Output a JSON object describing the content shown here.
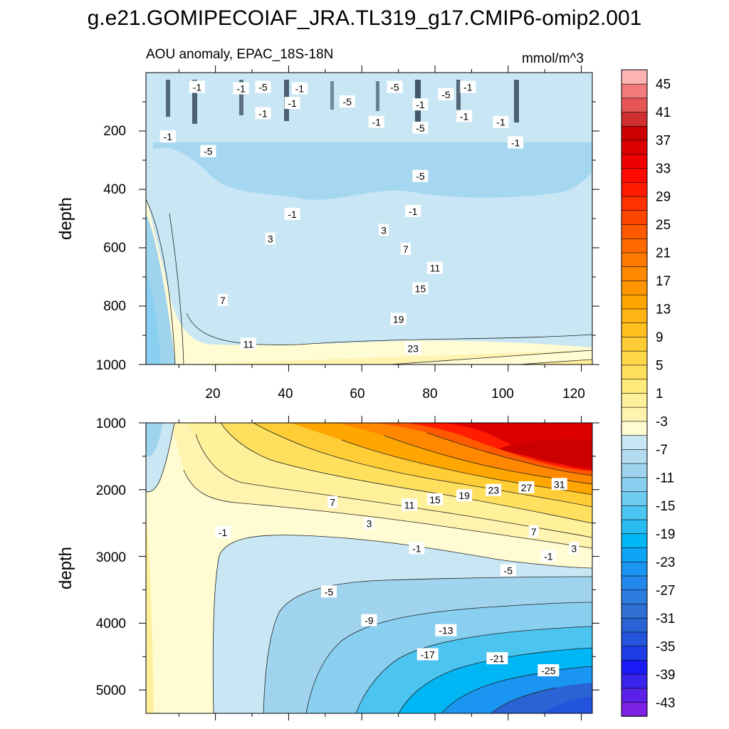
{
  "figure": {
    "title": "g.e21.GOMIPECOIAF_JRA.TL319_g17.CMIP6-omip2.001",
    "left_subtitle": "AOU anomaly, EPAC_18S-18N",
    "right_subtitle": "mmol/m^3"
  },
  "chart_data": [
    {
      "type": "contour",
      "panel": "upper",
      "ylabel": "depth",
      "xlim": [
        1,
        123
      ],
      "ylim": [
        1000,
        0
      ],
      "y_tick_labels": [
        "200",
        "400",
        "600",
        "800",
        "1000"
      ],
      "x_tick_labels": [
        "20",
        "40",
        "60",
        "80",
        "100",
        "120"
      ],
      "contour_labels": [
        {
          "text": "-1",
          "x": 15,
          "y": 50
        },
        {
          "text": "-1",
          "x": 27,
          "y": 55
        },
        {
          "text": "-5",
          "x": 33,
          "y": 50
        },
        {
          "text": "-1",
          "x": 43,
          "y": 55
        },
        {
          "text": "-5",
          "x": 69,
          "y": 50
        },
        {
          "text": "-1",
          "x": 89,
          "y": 50
        },
        {
          "text": "-5",
          "x": 83,
          "y": 75
        },
        {
          "text": "-5",
          "x": 56,
          "y": 100
        },
        {
          "text": "-1",
          "x": 41,
          "y": 105
        },
        {
          "text": "-1",
          "x": 33,
          "y": 140
        },
        {
          "text": "-1",
          "x": 76,
          "y": 110
        },
        {
          "text": "-1",
          "x": 64,
          "y": 170
        },
        {
          "text": "-5",
          "x": 76,
          "y": 190
        },
        {
          "text": "-1",
          "x": 88,
          "y": 150
        },
        {
          "text": "-1",
          "x": 98,
          "y": 170
        },
        {
          "text": "-1",
          "x": 102,
          "y": 240
        },
        {
          "text": "-1",
          "x": 7,
          "y": 220
        },
        {
          "text": "-5",
          "x": 18,
          "y": 270
        },
        {
          "text": "-5",
          "x": 76,
          "y": 355
        },
        {
          "text": "-1",
          "x": 41,
          "y": 485
        },
        {
          "text": "-1",
          "x": 74,
          "y": 475
        },
        {
          "text": "3",
          "x": 66,
          "y": 540
        },
        {
          "text": "3",
          "x": 35,
          "y": 570
        },
        {
          "text": "7",
          "x": 72,
          "y": 605
        },
        {
          "text": "11",
          "x": 80,
          "y": 670
        },
        {
          "text": "15",
          "x": 76,
          "y": 740
        },
        {
          "text": "7",
          "x": 22,
          "y": 780
        },
        {
          "text": "19",
          "x": 70,
          "y": 845
        },
        {
          "text": "11",
          "x": 29,
          "y": 930
        },
        {
          "text": "23",
          "x": 74,
          "y": 945
        }
      ]
    },
    {
      "type": "contour",
      "panel": "lower",
      "ylabel": "depth",
      "xlim": [
        1,
        123
      ],
      "ylim": [
        5350,
        1000
      ],
      "y_tick_labels": [
        "1000",
        "2000",
        "3000",
        "4000",
        "5000"
      ],
      "contour_labels": [
        {
          "text": "7",
          "x": 52,
          "y": 2190
        },
        {
          "text": "11",
          "x": 73,
          "y": 2230
        },
        {
          "text": "15",
          "x": 80,
          "y": 2150
        },
        {
          "text": "19",
          "x": 88,
          "y": 2090
        },
        {
          "text": "23",
          "x": 96,
          "y": 2010
        },
        {
          "text": "27",
          "x": 105,
          "y": 1970
        },
        {
          "text": "31",
          "x": 114,
          "y": 1920
        },
        {
          "text": "3",
          "x": 62,
          "y": 2510
        },
        {
          "text": "7",
          "x": 107,
          "y": 2630
        },
        {
          "text": "-1",
          "x": 22,
          "y": 2640
        },
        {
          "text": "-1",
          "x": 75,
          "y": 2880
        },
        {
          "text": "3",
          "x": 118,
          "y": 2880
        },
        {
          "text": "-1",
          "x": 111,
          "y": 3000
        },
        {
          "text": "-5",
          "x": 100,
          "y": 3210
        },
        {
          "text": "-5",
          "x": 51,
          "y": 3530
        },
        {
          "text": "-9",
          "x": 62,
          "y": 3960
        },
        {
          "text": "-13",
          "x": 83,
          "y": 4110
        },
        {
          "text": "-17",
          "x": 78,
          "y": 4470
        },
        {
          "text": "-21",
          "x": 97,
          "y": 4530
        },
        {
          "text": "-25",
          "x": 111,
          "y": 4710
        }
      ]
    }
  ],
  "colorbar": {
    "levels_min": -45,
    "levels_step": 2,
    "colors": [
      "#7e22e6",
      "#5b21e8",
      "#3a23ec",
      "#1a1af4",
      "#1d3ce6",
      "#2254de",
      "#2a64d4",
      "#3070d5",
      "#2c7ce0",
      "#2488ea",
      "#1b95f2",
      "#0ea5f5",
      "#00b6f4",
      "#28bcf0",
      "#4cc4f0",
      "#6ccbf0",
      "#88cff0",
      "#a0d4ee",
      "#b4dcf0",
      "#c8e6f4",
      "#fffbd2",
      "#fff3b0",
      "#fff09a",
      "#ffea7a",
      "#ffe05e",
      "#ffd84a",
      "#ffcd36",
      "#ffc020",
      "#ffb414",
      "#ffa600",
      "#ff9600",
      "#ff8800",
      "#ff7a00",
      "#ff6a00",
      "#ff5a00",
      "#ff4600",
      "#ff3200",
      "#ff1c00",
      "#ff0a00",
      "#f00000",
      "#de0000",
      "#cc0000",
      "#d03030",
      "#e65656",
      "#f27a7a",
      "#fcb4b4"
    ],
    "tick_labels": [
      "45",
      "41",
      "37",
      "33",
      "29",
      "25",
      "21",
      "17",
      "13",
      "9",
      "5",
      "1",
      "-3",
      "-7",
      "-11",
      "-15",
      "-19",
      "-23",
      "-27",
      "-31",
      "-35",
      "-39",
      "-43"
    ]
  }
}
